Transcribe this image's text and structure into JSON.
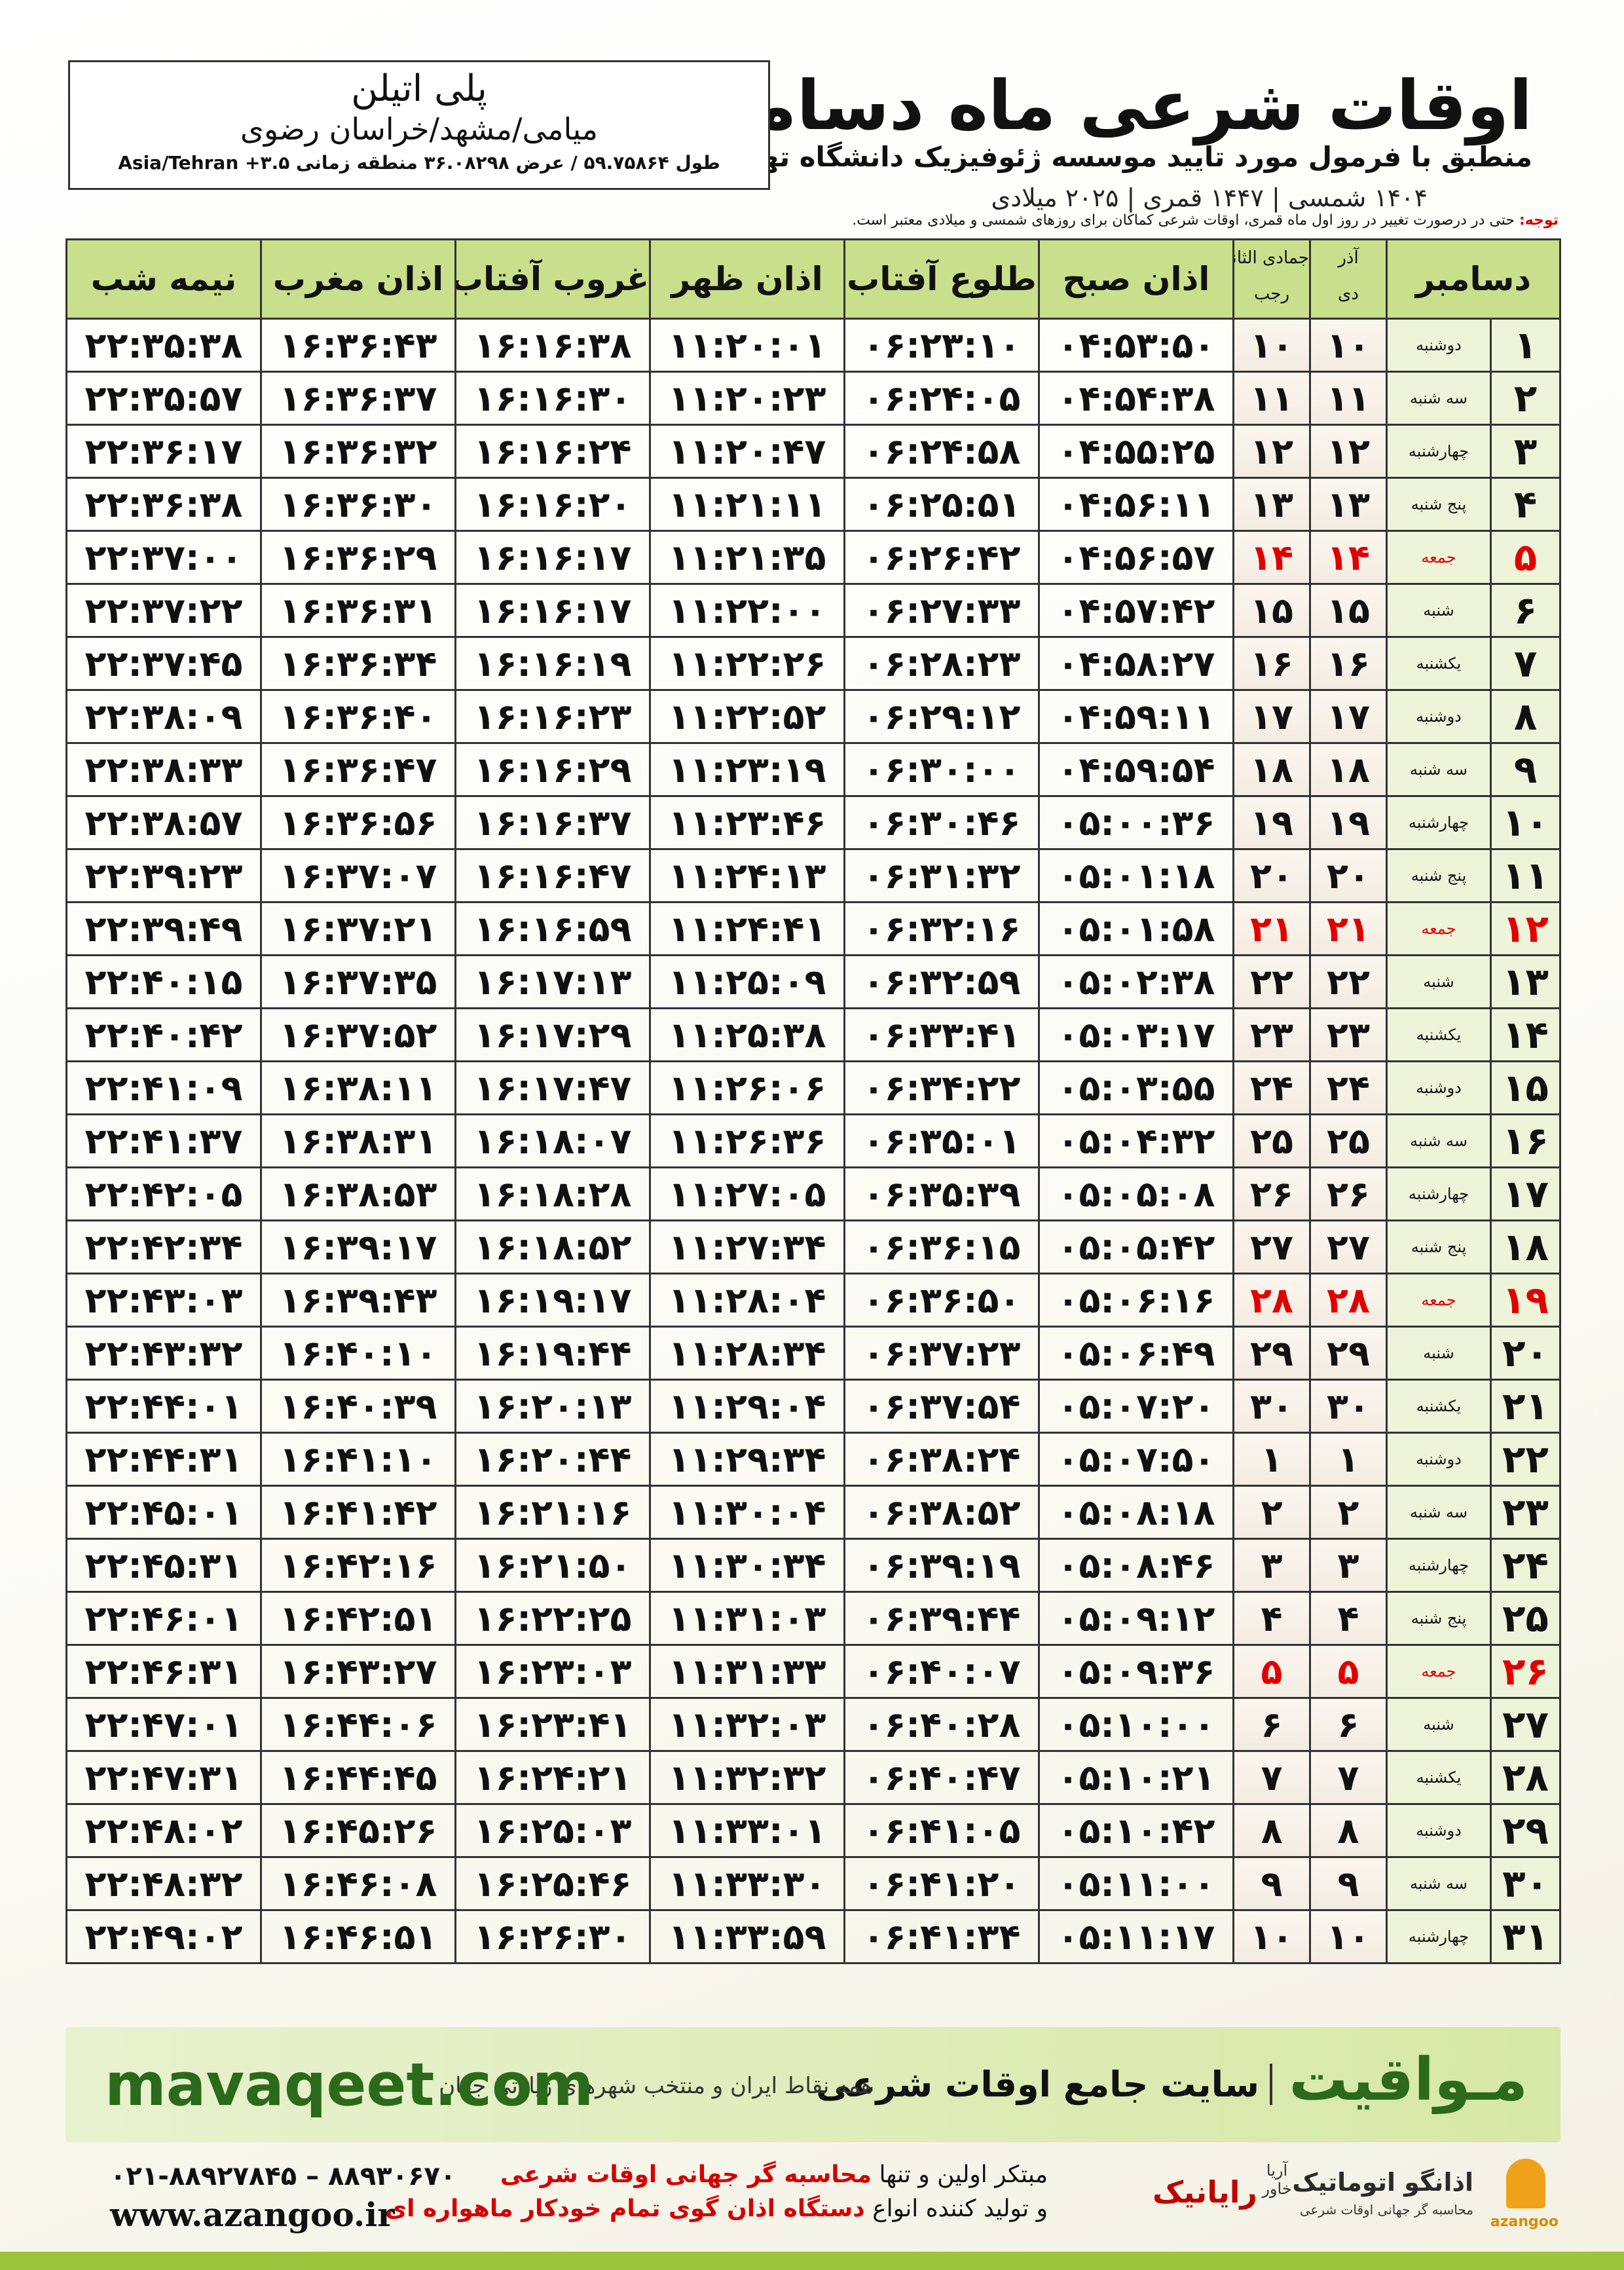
{
  "header": {
    "title": "اوقات شرعی ماه دسامبر",
    "subtitle": "منطبق با فرمول مورد تایید موسسه ژئوفیزیک دانشگاه تهران",
    "date_line": "۱۴۰۴ شمسی | ۱۴۴۷ قمری | ۲۰۲۵ میلادی"
  },
  "location": {
    "name": "پلی اتیلن",
    "place": "میامی/مشهد/خراسان رضوی",
    "coords": "طول ۵۹.۷۵۸۶۴ / عرض ۳۶.۰۸۲۹۸ منطقه زمانی ۳.۵+ Asia/Tehran"
  },
  "note": {
    "label": "توجه:",
    "text": "حتی در درصورت تغییر در روز اول ماه قمری، اوقات شرعی کماکان برای روزهای شمسی و میلادی معتبر است."
  },
  "table": {
    "month_header": "دسامبر",
    "jalali_header": {
      "top": "آذر",
      "bottom": "دی"
    },
    "lunar_header": {
      "top": "جمادی الثانی",
      "bottom": "رجب"
    },
    "time_headers": [
      "اذان صبح",
      "طلوع آفتاب",
      "اذان ظهر",
      "غروب آفتاب",
      "اذان مغرب",
      "نیمه شب"
    ],
    "highlight_rows": [
      4,
      11,
      18,
      25
    ],
    "rows": [
      [
        "۱",
        "دوشنبه",
        "۱۰",
        "۱۰",
        "۰۴:۵۳:۵۰",
        "۰۶:۲۳:۱۰",
        "۱۱:۲۰:۰۱",
        "۱۶:۱۶:۳۸",
        "۱۶:۳۶:۴۳",
        "۲۲:۳۵:۳۸"
      ],
      [
        "۲",
        "سه شنبه",
        "۱۱",
        "۱۱",
        "۰۴:۵۴:۳۸",
        "۰۶:۲۴:۰۵",
        "۱۱:۲۰:۲۳",
        "۱۶:۱۶:۳۰",
        "۱۶:۳۶:۳۷",
        "۲۲:۳۵:۵۷"
      ],
      [
        "۳",
        "چهارشنبه",
        "۱۲",
        "۱۲",
        "۰۴:۵۵:۲۵",
        "۰۶:۲۴:۵۸",
        "۱۱:۲۰:۴۷",
        "۱۶:۱۶:۲۴",
        "۱۶:۳۶:۳۲",
        "۲۲:۳۶:۱۷"
      ],
      [
        "۴",
        "پنج شنبه",
        "۱۳",
        "۱۳",
        "۰۴:۵۶:۱۱",
        "۰۶:۲۵:۵۱",
        "۱۱:۲۱:۱۱",
        "۱۶:۱۶:۲۰",
        "۱۶:۳۶:۳۰",
        "۲۲:۳۶:۳۸"
      ],
      [
        "۵",
        "جمعه",
        "۱۴",
        "۱۴",
        "۰۴:۵۶:۵۷",
        "۰۶:۲۶:۴۲",
        "۱۱:۲۱:۳۵",
        "۱۶:۱۶:۱۷",
        "۱۶:۳۶:۲۹",
        "۲۲:۳۷:۰۰"
      ],
      [
        "۶",
        "شنبه",
        "۱۵",
        "۱۵",
        "۰۴:۵۷:۴۲",
        "۰۶:۲۷:۳۳",
        "۱۱:۲۲:۰۰",
        "۱۶:۱۶:۱۷",
        "۱۶:۳۶:۳۱",
        "۲۲:۳۷:۲۲"
      ],
      [
        "۷",
        "یکشنبه",
        "۱۶",
        "۱۶",
        "۰۴:۵۸:۲۷",
        "۰۶:۲۸:۲۳",
        "۱۱:۲۲:۲۶",
        "۱۶:۱۶:۱۹",
        "۱۶:۳۶:۳۴",
        "۲۲:۳۷:۴۵"
      ],
      [
        "۸",
        "دوشنبه",
        "۱۷",
        "۱۷",
        "۰۴:۵۹:۱۱",
        "۰۶:۲۹:۱۲",
        "۱۱:۲۲:۵۲",
        "۱۶:۱۶:۲۳",
        "۱۶:۳۶:۴۰",
        "۲۲:۳۸:۰۹"
      ],
      [
        "۹",
        "سه شنبه",
        "۱۸",
        "۱۸",
        "۰۴:۵۹:۵۴",
        "۰۶:۳۰:۰۰",
        "۱۱:۲۳:۱۹",
        "۱۶:۱۶:۲۹",
        "۱۶:۳۶:۴۷",
        "۲۲:۳۸:۳۳"
      ],
      [
        "۱۰",
        "چهارشنبه",
        "۱۹",
        "۱۹",
        "۰۵:۰۰:۳۶",
        "۰۶:۳۰:۴۶",
        "۱۱:۲۳:۴۶",
        "۱۶:۱۶:۳۷",
        "۱۶:۳۶:۵۶",
        "۲۲:۳۸:۵۷"
      ],
      [
        "۱۱",
        "پنج شنبه",
        "۲۰",
        "۲۰",
        "۰۵:۰۱:۱۸",
        "۰۶:۳۱:۳۲",
        "۱۱:۲۴:۱۳",
        "۱۶:۱۶:۴۷",
        "۱۶:۳۷:۰۷",
        "۲۲:۳۹:۲۳"
      ],
      [
        "۱۲",
        "جمعه",
        "۲۱",
        "۲۱",
        "۰۵:۰۱:۵۸",
        "۰۶:۳۲:۱۶",
        "۱۱:۲۴:۴۱",
        "۱۶:۱۶:۵۹",
        "۱۶:۳۷:۲۱",
        "۲۲:۳۹:۴۹"
      ],
      [
        "۱۳",
        "شنبه",
        "۲۲",
        "۲۲",
        "۰۵:۰۲:۳۸",
        "۰۶:۳۲:۵۹",
        "۱۱:۲۵:۰۹",
        "۱۶:۱۷:۱۳",
        "۱۶:۳۷:۳۵",
        "۲۲:۴۰:۱۵"
      ],
      [
        "۱۴",
        "یکشنبه",
        "۲۳",
        "۲۳",
        "۰۵:۰۳:۱۷",
        "۰۶:۳۳:۴۱",
        "۱۱:۲۵:۳۸",
        "۱۶:۱۷:۲۹",
        "۱۶:۳۷:۵۲",
        "۲۲:۴۰:۴۲"
      ],
      [
        "۱۵",
        "دوشنبه",
        "۲۴",
        "۲۴",
        "۰۵:۰۳:۵۵",
        "۰۶:۳۴:۲۲",
        "۱۱:۲۶:۰۶",
        "۱۶:۱۷:۴۷",
        "۱۶:۳۸:۱۱",
        "۲۲:۴۱:۰۹"
      ],
      [
        "۱۶",
        "سه شنبه",
        "۲۵",
        "۲۵",
        "۰۵:۰۴:۳۲",
        "۰۶:۳۵:۰۱",
        "۱۱:۲۶:۳۶",
        "۱۶:۱۸:۰۷",
        "۱۶:۳۸:۳۱",
        "۲۲:۴۱:۳۷"
      ],
      [
        "۱۷",
        "چهارشنبه",
        "۲۶",
        "۲۶",
        "۰۵:۰۵:۰۸",
        "۰۶:۳۵:۳۹",
        "۱۱:۲۷:۰۵",
        "۱۶:۱۸:۲۸",
        "۱۶:۳۸:۵۳",
        "۲۲:۴۲:۰۵"
      ],
      [
        "۱۸",
        "پنج شنبه",
        "۲۷",
        "۲۷",
        "۰۵:۰۵:۴۲",
        "۰۶:۳۶:۱۵",
        "۱۱:۲۷:۳۴",
        "۱۶:۱۸:۵۲",
        "۱۶:۳۹:۱۷",
        "۲۲:۴۲:۳۴"
      ],
      [
        "۱۹",
        "جمعه",
        "۲۸",
        "۲۸",
        "۰۵:۰۶:۱۶",
        "۰۶:۳۶:۵۰",
        "۱۱:۲۸:۰۴",
        "۱۶:۱۹:۱۷",
        "۱۶:۳۹:۴۳",
        "۲۲:۴۳:۰۳"
      ],
      [
        "۲۰",
        "شنبه",
        "۲۹",
        "۲۹",
        "۰۵:۰۶:۴۹",
        "۰۶:۳۷:۲۳",
        "۱۱:۲۸:۳۴",
        "۱۶:۱۹:۴۴",
        "۱۶:۴۰:۱۰",
        "۲۲:۴۳:۳۲"
      ],
      [
        "۲۱",
        "یکشنبه",
        "۳۰",
        "۳۰",
        "۰۵:۰۷:۲۰",
        "۰۶:۳۷:۵۴",
        "۱۱:۲۹:۰۴",
        "۱۶:۲۰:۱۳",
        "۱۶:۴۰:۳۹",
        "۲۲:۴۴:۰۱"
      ],
      [
        "۲۲",
        "دوشنبه",
        "۱",
        "۱",
        "۰۵:۰۷:۵۰",
        "۰۶:۳۸:۲۴",
        "۱۱:۲۹:۳۴",
        "۱۶:۲۰:۴۴",
        "۱۶:۴۱:۱۰",
        "۲۲:۴۴:۳۱"
      ],
      [
        "۲۳",
        "سه شنبه",
        "۲",
        "۲",
        "۰۵:۰۸:۱۸",
        "۰۶:۳۸:۵۲",
        "۱۱:۳۰:۰۴",
        "۱۶:۲۱:۱۶",
        "۱۶:۴۱:۴۲",
        "۲۲:۴۵:۰۱"
      ],
      [
        "۲۴",
        "چهارشنبه",
        "۳",
        "۳",
        "۰۵:۰۸:۴۶",
        "۰۶:۳۹:۱۹",
        "۱۱:۳۰:۳۴",
        "۱۶:۲۱:۵۰",
        "۱۶:۴۲:۱۶",
        "۲۲:۴۵:۳۱"
      ],
      [
        "۲۵",
        "پنج شنبه",
        "۴",
        "۴",
        "۰۵:۰۹:۱۲",
        "۰۶:۳۹:۴۴",
        "۱۱:۳۱:۰۳",
        "۱۶:۲۲:۲۵",
        "۱۶:۴۲:۵۱",
        "۲۲:۴۶:۰۱"
      ],
      [
        "۲۶",
        "جمعه",
        "۵",
        "۵",
        "۰۵:۰۹:۳۶",
        "۰۶:۴۰:۰۷",
        "۱۱:۳۱:۳۳",
        "۱۶:۲۳:۰۳",
        "۱۶:۴۳:۲۷",
        "۲۲:۴۶:۳۱"
      ],
      [
        "۲۷",
        "شنبه",
        "۶",
        "۶",
        "۰۵:۱۰:۰۰",
        "۰۶:۴۰:۲۸",
        "۱۱:۳۲:۰۳",
        "۱۶:۲۳:۴۱",
        "۱۶:۴۴:۰۶",
        "۲۲:۴۷:۰۱"
      ],
      [
        "۲۸",
        "یکشنبه",
        "۷",
        "۷",
        "۰۵:۱۰:۲۱",
        "۰۶:۴۰:۴۷",
        "۱۱:۳۲:۳۲",
        "۱۶:۲۴:۲۱",
        "۱۶:۴۴:۴۵",
        "۲۲:۴۷:۳۱"
      ],
      [
        "۲۹",
        "دوشنبه",
        "۸",
        "۸",
        "۰۵:۱۰:۴۲",
        "۰۶:۴۱:۰۵",
        "۱۱:۳۳:۰۱",
        "۱۶:۲۵:۰۳",
        "۱۶:۴۵:۲۶",
        "۲۲:۴۸:۰۲"
      ],
      [
        "۳۰",
        "سه شنبه",
        "۹",
        "۹",
        "۰۵:۱۱:۰۰",
        "۰۶:۴۱:۲۰",
        "۱۱:۳۳:۳۰",
        "۱۶:۲۵:۴۶",
        "۱۶:۴۶:۰۸",
        "۲۲:۴۸:۳۲"
      ],
      [
        "۳۱",
        "چهارشنبه",
        "۱۰",
        "۱۰",
        "۰۵:۱۱:۱۷",
        "۰۶:۴۱:۳۴",
        "۱۱:۳۳:۵۹",
        "۱۶:۲۶:۳۰",
        "۱۶:۴۶:۵۱",
        "۲۲:۴۹:۰۲"
      ]
    ]
  },
  "banner": {
    "brand": "مـواقیت",
    "tagline": "سایت جامع اوقات شرعی",
    "subline": "همه نقاط ایران و منتخب شهرهای زیارتی جهان",
    "url": "mavaqeet.com"
  },
  "footer": {
    "phone": "۰۲۱-۸۸۹۲۷۸۴۵ – ۸۸۹۳۰۶۷۰",
    "website": "www.azangoo.ir",
    "line1": "مبتکر اولین و تنها",
    "line1_red": "محاسبه گر جهانی اوقات شرعی",
    "line2": "و تولید کننده انواع",
    "line2_red": "دستگاه اذان گوی تمام خودکار ماهواره ای",
    "logo1": "رایانیک",
    "logo1_sub": "آریا خاور",
    "logo2": "اذانگو اتوماتیک",
    "logo2_sub": "محاسبه گر جهانی اوقات شرعی",
    "logo3": "azangoo"
  }
}
